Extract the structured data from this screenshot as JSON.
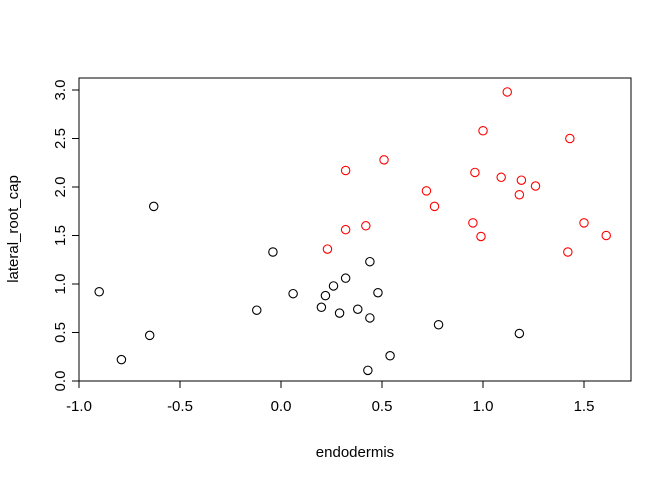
{
  "chart_data": {
    "type": "scatter",
    "title": "",
    "xlabel": "endodermis",
    "ylabel": "lateral_root_cap",
    "xlim": [
      -1.0,
      1.6
    ],
    "ylim": [
      0.0,
      3.0
    ],
    "xticks": [
      -1.0,
      -0.5,
      0.0,
      0.5,
      1.0,
      1.5
    ],
    "xtick_labels": [
      "-1.0",
      "-0.5",
      "0.0",
      "0.5",
      "1.0",
      "1.5"
    ],
    "yticks": [
      0.0,
      0.5,
      1.0,
      1.5,
      2.0,
      2.5,
      3.0
    ],
    "ytick_labels": [
      "0.0",
      "0.5",
      "1.0",
      "1.5",
      "2.0",
      "2.5",
      "3.0"
    ],
    "grid": false,
    "legend": "none",
    "marker": "open-circle",
    "series": [
      {
        "color": "#000000",
        "points": [
          [
            -0.9,
            0.92
          ],
          [
            -0.79,
            0.22
          ],
          [
            -0.65,
            0.47
          ],
          [
            -0.63,
            1.8
          ],
          [
            -0.12,
            0.73
          ],
          [
            -0.04,
            1.33
          ],
          [
            0.06,
            0.9
          ],
          [
            0.2,
            0.76
          ],
          [
            0.22,
            0.88
          ],
          [
            0.26,
            0.98
          ],
          [
            0.29,
            0.7
          ],
          [
            0.32,
            1.06
          ],
          [
            0.38,
            0.74
          ],
          [
            0.43,
            0.11
          ],
          [
            0.44,
            1.23
          ],
          [
            0.44,
            0.65
          ],
          [
            0.48,
            0.91
          ],
          [
            0.54,
            0.26
          ],
          [
            0.78,
            0.58
          ],
          [
            1.18,
            0.49
          ]
        ]
      },
      {
        "color": "#ff0000",
        "points": [
          [
            0.23,
            1.36
          ],
          [
            0.32,
            2.17
          ],
          [
            0.32,
            1.56
          ],
          [
            0.42,
            1.6
          ],
          [
            0.51,
            2.28
          ],
          [
            0.72,
            1.96
          ],
          [
            0.76,
            1.8
          ],
          [
            0.95,
            1.63
          ],
          [
            0.96,
            2.15
          ],
          [
            0.99,
            1.49
          ],
          [
            1.0,
            2.58
          ],
          [
            1.09,
            2.1
          ],
          [
            1.12,
            2.98
          ],
          [
            1.18,
            1.92
          ],
          [
            1.19,
            2.07
          ],
          [
            1.26,
            2.01
          ],
          [
            1.42,
            1.33
          ],
          [
            1.43,
            2.5
          ],
          [
            1.5,
            1.63
          ],
          [
            1.61,
            1.5
          ]
        ]
      }
    ]
  }
}
